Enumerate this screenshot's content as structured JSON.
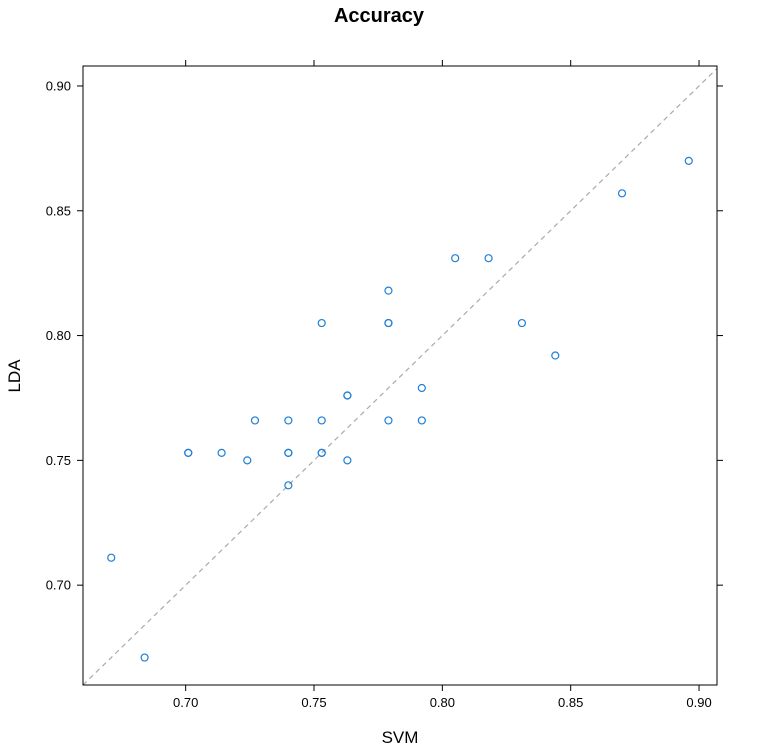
{
  "chart_data": {
    "type": "scatter",
    "title": "Accuracy",
    "xlabel": "SVM",
    "ylabel": "LDA",
    "xlim": [
      0.66,
      0.907
    ],
    "ylim": [
      0.66,
      0.908
    ],
    "x_ticks": [
      "0.70",
      "0.75",
      "0.80",
      "0.85",
      "0.90"
    ],
    "y_ticks": [
      "0.70",
      "0.75",
      "0.80",
      "0.85",
      "0.90"
    ],
    "grid": false,
    "reference_line": {
      "type": "identity",
      "style": "dashed",
      "color": "#aaaaaa"
    },
    "point_color": "#1f7fd8",
    "marker": "open-circle",
    "series": [
      {
        "points": [
          [
            0.671,
            0.711
          ],
          [
            0.684,
            0.671
          ],
          [
            0.701,
            0.753
          ],
          [
            0.701,
            0.753
          ],
          [
            0.714,
            0.753
          ],
          [
            0.724,
            0.75
          ],
          [
            0.727,
            0.766
          ],
          [
            0.74,
            0.766
          ],
          [
            0.74,
            0.753
          ],
          [
            0.74,
            0.753
          ],
          [
            0.74,
            0.74
          ],
          [
            0.753,
            0.805
          ],
          [
            0.753,
            0.766
          ],
          [
            0.753,
            0.753
          ],
          [
            0.753,
            0.753
          ],
          [
            0.763,
            0.776
          ],
          [
            0.763,
            0.776
          ],
          [
            0.763,
            0.75
          ],
          [
            0.779,
            0.818
          ],
          [
            0.779,
            0.805
          ],
          [
            0.779,
            0.805
          ],
          [
            0.779,
            0.766
          ],
          [
            0.792,
            0.779
          ],
          [
            0.792,
            0.766
          ],
          [
            0.805,
            0.831
          ],
          [
            0.818,
            0.831
          ],
          [
            0.831,
            0.805
          ],
          [
            0.844,
            0.792
          ],
          [
            0.87,
            0.857
          ],
          [
            0.896,
            0.87
          ]
        ]
      }
    ]
  }
}
